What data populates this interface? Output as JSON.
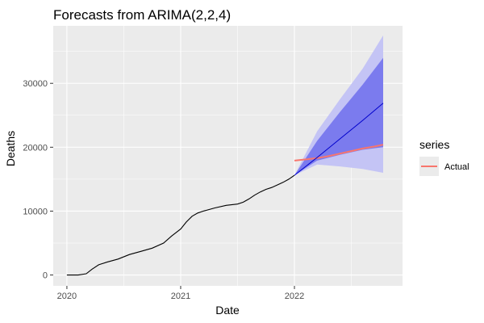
{
  "chart_data": {
    "type": "line",
    "title": "Forecasts from ARIMA(2,2,4)",
    "xlabel": "Date",
    "ylabel": "Deaths",
    "xlim": [
      2019.88,
      2022.95
    ],
    "ylim": [
      -1700,
      39000
    ],
    "x_ticks": [
      2020,
      2021,
      2022
    ],
    "x_tick_labels": [
      "2020",
      "2021",
      "2022"
    ],
    "y_ticks": [
      0,
      10000,
      20000,
      30000
    ],
    "y_tick_labels": [
      "0",
      "10000",
      "20000",
      "30000"
    ],
    "grid": true,
    "legend_position": "right",
    "legend_title": "series",
    "colors": {
      "panel": "#ebebeb",
      "grid": "#ffffff",
      "history": "#000000",
      "forecast": "#0000cc",
      "band_80": "#7b7bee",
      "band_95": "#c4c4f5",
      "actual": "#f8766d"
    },
    "series": [
      {
        "role": "history",
        "x": [
          2020.0,
          2020.1,
          2020.17,
          2020.22,
          2020.28,
          2020.35,
          2020.45,
          2020.55,
          2020.65,
          2020.75,
          2020.85,
          2020.92,
          2021.0,
          2021.05,
          2021.1,
          2021.15,
          2021.2,
          2021.3,
          2021.4,
          2021.5,
          2021.55,
          2021.6,
          2021.65,
          2021.7,
          2021.75,
          2021.8,
          2021.85,
          2021.9,
          2021.95,
          2022.0
        ],
        "values": [
          0,
          0,
          200,
          900,
          1600,
          2000,
          2500,
          3200,
          3700,
          4200,
          5000,
          6100,
          7200,
          8300,
          9200,
          9700,
          10000,
          10500,
          10900,
          11100,
          11400,
          11900,
          12500,
          13000,
          13400,
          13700,
          14100,
          14500,
          15000,
          15600
        ]
      },
      {
        "role": "point-forecast",
        "x": [
          2022.0,
          2022.2,
          2022.4,
          2022.6,
          2022.78
        ],
        "values": [
          15600,
          18400,
          21300,
          24200,
          26900
        ]
      },
      {
        "role": "interval-95",
        "x": [
          2022.0,
          2022.2,
          2022.4,
          2022.6,
          2022.78
        ],
        "upper": [
          15600,
          22500,
          27500,
          32300,
          37500
        ],
        "lower": [
          15600,
          17300,
          17000,
          16600,
          16000
        ]
      },
      {
        "role": "interval-80",
        "x": [
          2022.0,
          2022.2,
          2022.4,
          2022.6,
          2022.78
        ],
        "upper": [
          15600,
          21000,
          25500,
          29800,
          34000
        ],
        "lower": [
          15600,
          17900,
          18800,
          19600,
          20000
        ]
      },
      {
        "name": "Actual",
        "role": "actual",
        "x": [
          2022.0,
          2022.05,
          2022.1,
          2022.2,
          2022.3,
          2022.4,
          2022.5,
          2022.6,
          2022.7,
          2022.78
        ],
        "values": [
          17900,
          18000,
          18100,
          18300,
          18600,
          19000,
          19400,
          19800,
          20100,
          20400
        ]
      }
    ]
  }
}
